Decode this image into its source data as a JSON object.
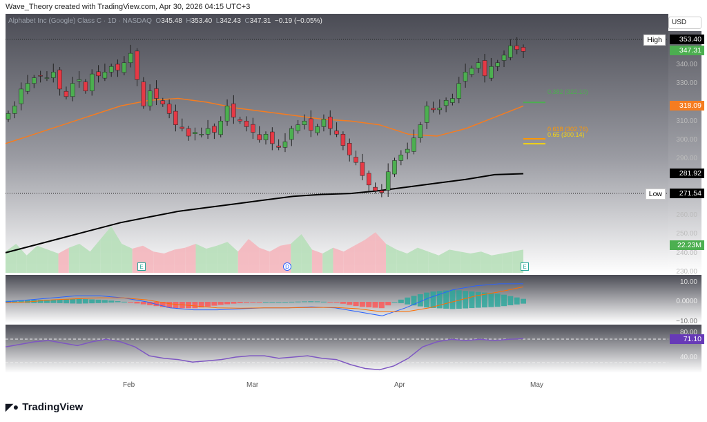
{
  "credit": "Wave_Theory created with TradingView.com, Apr 30, 2026 04:15 UTC+3",
  "legend": {
    "symbol": "Alphabet Inc (Google) Class C · 1D · NASDAQ",
    "o_label": "O",
    "o": "345.48",
    "h_label": "H",
    "h": "353.40",
    "l_label": "L",
    "l": "342.43",
    "c_label": "C",
    "c": "347.31",
    "change": "−0.19 (−0.05%)"
  },
  "currency": "USD",
  "price_axis": [
    "340.00",
    "330.00",
    "310.00",
    "300.00",
    "290.00",
    "260.00",
    "250.00",
    "240.00",
    "230.00"
  ],
  "tags": {
    "high_label": "High",
    "high": "353.40",
    "last": "347.31",
    "ma50": "318.09",
    "ma200": "281.92",
    "low_label": "Low",
    "low": "271.54",
    "volume": "22.23M",
    "rsi": "71.10"
  },
  "macd_axis": [
    "10.00",
    "0.0000",
    "−10.00"
  ],
  "rsi_axis": [
    "80.00",
    "40.00"
  ],
  "fib": [
    {
      "label": "0.382 (322.10)",
      "price": 322.1,
      "color": "#4caf50"
    },
    {
      "label": "0.618 (302.76)",
      "price": 302.76,
      "color": "#ff9800"
    },
    {
      "label": "0.65 (300.14)",
      "price": 300.14,
      "color": "#f5d50f"
    }
  ],
  "time_axis": [
    "Feb",
    "Mar",
    "Apr",
    "May"
  ],
  "events": [
    "E",
    "D",
    "E"
  ],
  "brand": "TradingView",
  "colors": {
    "up": "#4caf50",
    "down": "#e53945",
    "ma50": "#f57c20",
    "ma200": "#000000",
    "rsi": "#7e57c2",
    "macd": "#2962ff",
    "signal": "#ff6d00"
  },
  "chart_data": {
    "type": "candlestick",
    "closes": [
      314,
      318,
      327,
      330,
      333,
      334,
      333,
      336,
      327,
      323,
      330,
      332,
      326,
      335,
      334,
      336,
      339,
      337,
      341,
      346,
      332,
      318,
      326,
      322,
      319,
      314,
      308,
      306,
      302,
      304,
      303,
      306,
      304,
      310,
      318,
      312,
      310,
      307,
      304,
      300,
      303,
      298,
      296,
      299,
      306,
      308,
      310,
      305,
      307,
      311,
      306,
      303,
      297,
      292,
      288,
      281,
      276,
      273,
      272,
      283,
      289,
      292,
      295,
      301,
      308,
      318,
      316,
      317,
      321,
      322,
      330,
      336,
      338,
      341,
      334,
      339,
      341,
      345,
      350,
      348,
      347
    ],
    "ma50": [
      298,
      303,
      308,
      313,
      318,
      321,
      322,
      320,
      317,
      315,
      313,
      311,
      310,
      308,
      303,
      302,
      306,
      312,
      318
    ],
    "ma200": [
      240,
      244,
      248,
      252,
      256,
      259,
      262,
      264,
      266,
      268,
      270,
      271,
      271.5,
      273,
      275,
      277,
      279,
      281.5,
      282
    ],
    "volume_m": [
      22,
      30,
      18,
      28,
      24,
      20,
      26,
      30,
      22,
      35,
      48,
      30,
      25,
      28,
      22,
      20,
      24,
      26,
      30,
      25,
      28,
      32,
      22,
      35,
      26,
      22,
      28,
      30,
      40,
      24,
      20,
      26,
      22,
      28,
      34,
      42,
      30,
      24,
      20,
      26,
      22,
      18,
      24,
      22,
      20,
      22,
      18,
      20,
      22,
      24
    ],
    "macd": [
      0,
      1,
      2,
      3,
      3,
      2,
      0,
      -3,
      -4,
      -4,
      -3.5,
      -3,
      -3,
      -2.5,
      -3,
      -5,
      -7,
      -3,
      2,
      6,
      8,
      9,
      9
    ],
    "signal": [
      -0.5,
      0,
      1,
      1.5,
      2,
      2,
      1,
      -1,
      -2,
      -3,
      -3.2,
      -3,
      -3,
      -2.8,
      -2.8,
      -3.5,
      -5,
      -5,
      -3,
      0,
      3,
      5,
      7.5
    ],
    "rsi": [
      58,
      62,
      66,
      68,
      64,
      60,
      66,
      70,
      66,
      58,
      44,
      40,
      38,
      34,
      36,
      38,
      42,
      44,
      44,
      40,
      42,
      44,
      40,
      38,
      30,
      24,
      22,
      28,
      40,
      58,
      66,
      70,
      68,
      70,
      68,
      70,
      71
    ],
    "price_range": [
      226,
      356
    ],
    "macd_range": [
      -10.5,
      11
    ],
    "rsi_range": [
      20,
      85
    ]
  }
}
